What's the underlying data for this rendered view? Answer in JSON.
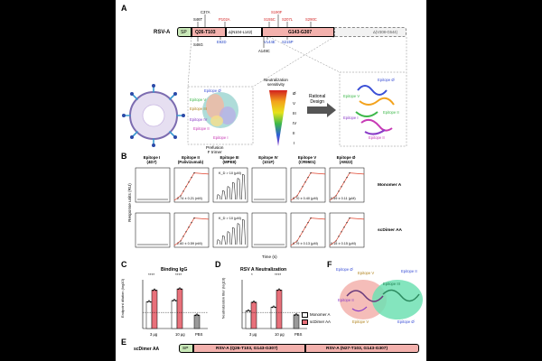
{
  "panels": {
    "A": "A",
    "B": "B",
    "C": "C",
    "D": "D",
    "E": "E",
    "F": "F"
  },
  "panelA": {
    "construct_label": "RSV-A",
    "sp": "SP",
    "seg1": "Q26-T103",
    "deletion1": "Δ(N104-L142)",
    "seg2": "G143-G307",
    "deletion2": "Δ(V308-G544)",
    "mut_top": [
      {
        "text": "C37A",
        "color": "#000000"
      },
      {
        "text": "S46T",
        "color": "#000000"
      },
      {
        "text": "P102A",
        "color": "#d21f1f"
      },
      {
        "text": "S190F",
        "color": "#d21f1f"
      },
      {
        "text": "S155C",
        "color": "#d21f1f"
      },
      {
        "text": "S207L",
        "color": "#d21f1f"
      },
      {
        "text": "S290C",
        "color": "#d21f1f"
      }
    ],
    "mut_bottom": [
      {
        "text": "S46G",
        "color": "#000000"
      },
      {
        "text": "E92D",
        "color": "#1d3ec4"
      },
      {
        "text": "V144E",
        "color": "#1d3ec4"
      },
      {
        "text": "A149C",
        "color": "#000000"
      },
      {
        "text": "S215P",
        "color": "#1d3ec4"
      }
    ],
    "prefusion_label": "Prefusion\nF trimer",
    "sensitivity_title": "Neutralization\nsensitivity",
    "sensitivity_levels": [
      "Ø",
      "V",
      "III",
      "IV",
      "II",
      "I"
    ],
    "rational_design": "Rational\nDesign",
    "epitopes_trimer": [
      "Epitope Ø",
      "Epitope V",
      "Epitope III",
      "Epitope IV",
      "Epitope II",
      "Epitope I"
    ],
    "epitopes_monomer": [
      "Epitope Ø",
      "Epitope V",
      "Epitope II",
      "Epitope I",
      "Epitope II"
    ]
  },
  "panelB": {
    "y_axis": "Response units (RU)",
    "x_axis": "Time (s)",
    "rows": [
      "Monomer A",
      "scDimer AA"
    ],
    "columns": [
      {
        "title": "Epitope I\n(4D7)"
      },
      {
        "title": "Epitope II\n(Palivizumab)"
      },
      {
        "title": "Epitope III\n(MPE8)"
      },
      {
        "title": "Epitope IV\n(101F)"
      },
      {
        "title": "Epitope V\n(CR9501)"
      },
      {
        "title": "Epitope Ø\n(AM22)"
      }
    ],
    "kd_values": {
      "row1": [
        "",
        "2.74 ± 0.21 (nM)",
        "K_D > 10 (μM)",
        "",
        "0.70 ± 0.40 (μM)",
        "0.59 ± 0.11 (μM)"
      ],
      "row2": [
        "",
        "2.60 ± 0.59 (nM)",
        "K_D > 10 (μM)",
        "",
        "0.79 ± 0.13 (μM)",
        "0.15 ± 0.15 (μM)"
      ]
    }
  },
  "panelC": {
    "title": "Binding IgG",
    "ylabel": "Endpoint dilution (log10)",
    "groups": [
      "3 μg",
      "10 μg",
      "PBS"
    ],
    "sig": [
      "****",
      "****"
    ]
  },
  "panelD": {
    "title": "RSV A Neutralization",
    "ylabel": "Neutralization titer (log10)",
    "groups": [
      "3 μg",
      "10 μg",
      "PBS"
    ],
    "sig": [
      "*",
      "****"
    ],
    "legend": [
      "Monomer A",
      "scDimer AA"
    ]
  },
  "panelE": {
    "label": "scDimer AA",
    "sp": "SP",
    "seg1": "RSV-A (Q26-T103, G143-G307)",
    "seg2": "RSV-A (N27-T103, G143-G307)"
  },
  "panelF": {
    "epitopes": [
      "Epitope Ø",
      "Epitope V",
      "Epitope III",
      "Epitope II",
      "Epitope V",
      "Epitope Ø",
      "Epitope II"
    ]
  },
  "chart_data": [
    {
      "type": "bar",
      "title": "Binding IgG",
      "ylabel": "Endpoint dilution (log10)",
      "categories": [
        "3 μg",
        "10 μg",
        "PBS"
      ],
      "series": [
        {
          "name": "Monomer A",
          "values": [
            4.4,
            4.6,
            null
          ]
        },
        {
          "name": "scDimer AA",
          "values": [
            6.3,
            6.5,
            null
          ]
        },
        {
          "name": "PBS",
          "values": [
            null,
            null,
            2.2
          ]
        }
      ],
      "ylim": [
        0,
        8
      ]
    },
    {
      "type": "bar",
      "title": "RSV A Neutralization",
      "ylabel": "Neutralization titer (log10)",
      "categories": [
        "3 μg",
        "10 μg",
        "PBS"
      ],
      "series": [
        {
          "name": "Monomer A",
          "values": [
            3.6,
            4.4,
            null
          ]
        },
        {
          "name": "scDimer AA",
          "values": [
            5.4,
            7.9,
            null
          ]
        },
        {
          "name": "PBS",
          "values": [
            null,
            null,
            2.8
          ]
        }
      ],
      "ylim": [
        0,
        10
      ]
    }
  ]
}
